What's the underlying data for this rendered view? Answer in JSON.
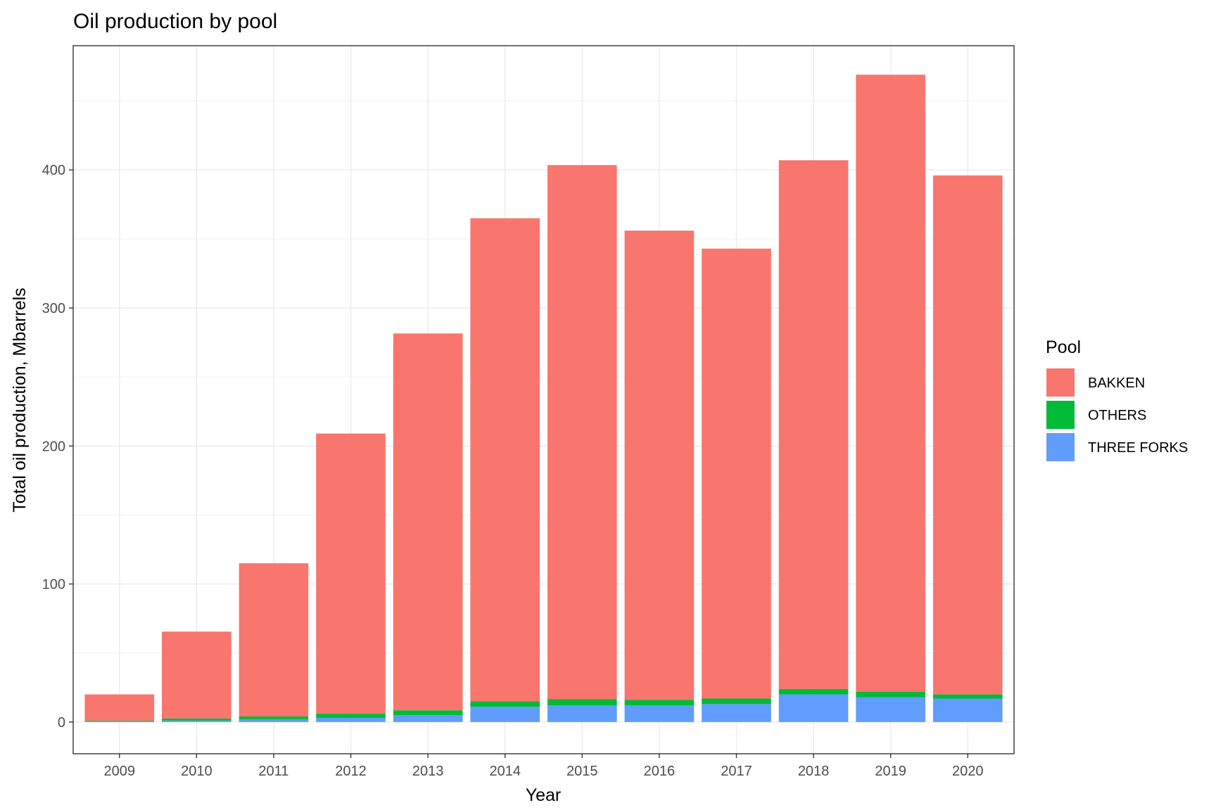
{
  "chart_data": {
    "type": "bar",
    "stacked": true,
    "title": "Oil production by pool",
    "xlabel": "Year",
    "ylabel": "Total oil production, Mbarrels",
    "categories": [
      "2009",
      "2010",
      "2011",
      "2012",
      "2013",
      "2014",
      "2015",
      "2016",
      "2017",
      "2018",
      "2019",
      "2020"
    ],
    "ylim": [
      -23,
      490
    ],
    "yticks": [
      0,
      100,
      200,
      300,
      400
    ],
    "grid": true,
    "legend": {
      "title": "Pool",
      "position": "right"
    },
    "series": [
      {
        "name": "THREE FORKS",
        "color": "#619CFF",
        "values": [
          0.5,
          1,
          2,
          3,
          5,
          11,
          12,
          12,
          13,
          20,
          18,
          17
        ]
      },
      {
        "name": "OTHERS",
        "color": "#00BA38",
        "values": [
          0.5,
          1.5,
          2,
          3,
          3.5,
          4,
          4.5,
          4,
          4,
          4,
          4,
          3
        ]
      },
      {
        "name": "BAKKEN",
        "color": "#F8766D",
        "values": [
          19,
          63,
          111,
          203,
          273,
          350,
          387,
          340,
          326,
          383,
          447,
          376
        ]
      }
    ]
  }
}
